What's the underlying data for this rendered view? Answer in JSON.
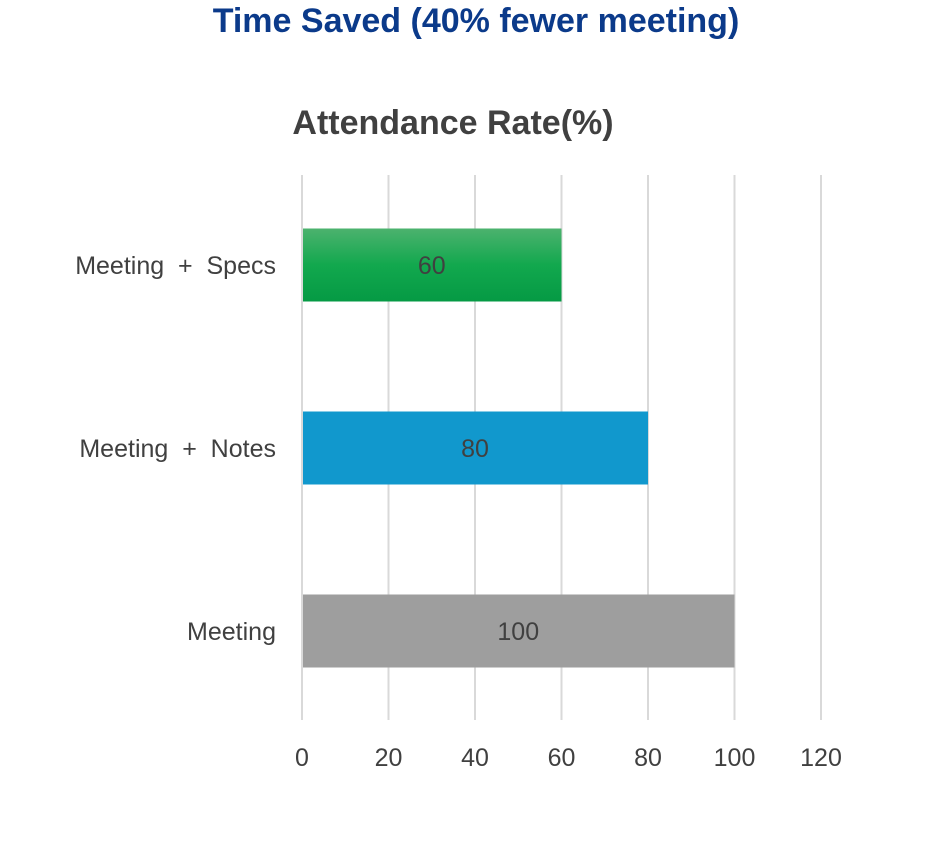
{
  "title": "Time Saved (40% fewer meeting)",
  "chart_data": {
    "type": "bar",
    "orientation": "horizontal",
    "title": "Attendance Rate(%)",
    "categories": [
      "Meeting  +  Specs",
      "Meeting  +  Notes",
      "Meeting"
    ],
    "values": [
      60,
      80,
      100
    ],
    "colors": [
      "#0ea14a",
      "#1198cd",
      "#9e9e9e"
    ],
    "xlim": [
      0,
      120
    ],
    "xticks": [
      0,
      20,
      40,
      60,
      80,
      100,
      120
    ],
    "grid": true,
    "xlabel": "",
    "ylabel": ""
  }
}
